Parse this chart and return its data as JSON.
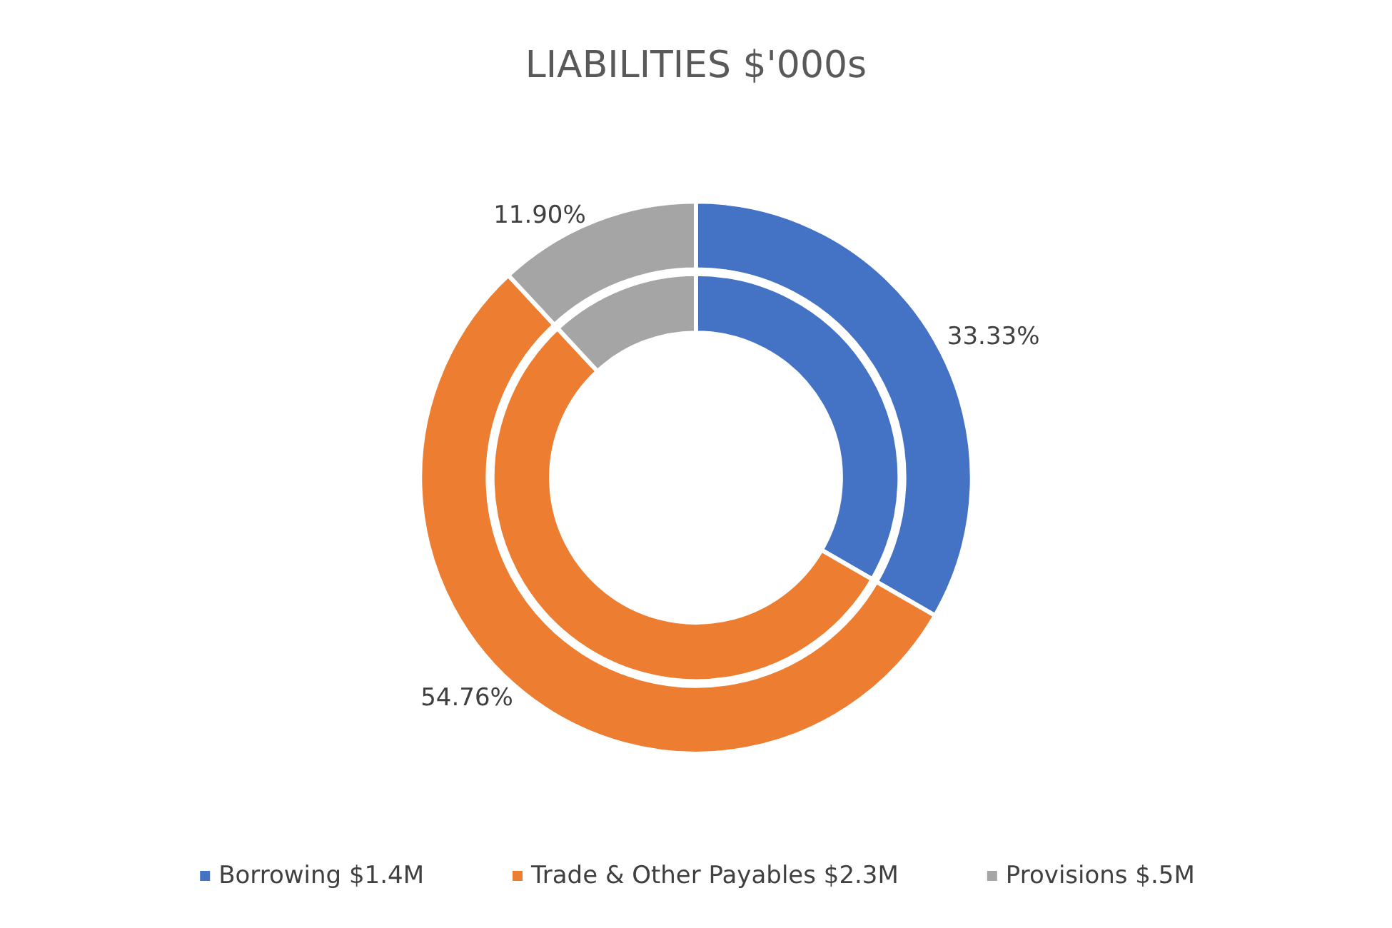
{
  "chart_data": {
    "type": "donut",
    "title": "LIABILITIES $'000s",
    "categories": [
      "Borrowing $1.4M",
      "Trade & Other Payables $2.3M",
      "Provisions $.5M"
    ],
    "colors": [
      "#4472c4",
      "#ed7d31",
      "#a5a5a5"
    ],
    "series": [
      {
        "values": [
          33.33,
          54.76,
          11.9
        ],
        "value_labels": [
          "33.33%",
          "54.76%",
          "11.90%"
        ]
      },
      {
        "values": [
          33.33,
          54.76,
          11.9
        ]
      }
    ],
    "legend": "bottom"
  }
}
